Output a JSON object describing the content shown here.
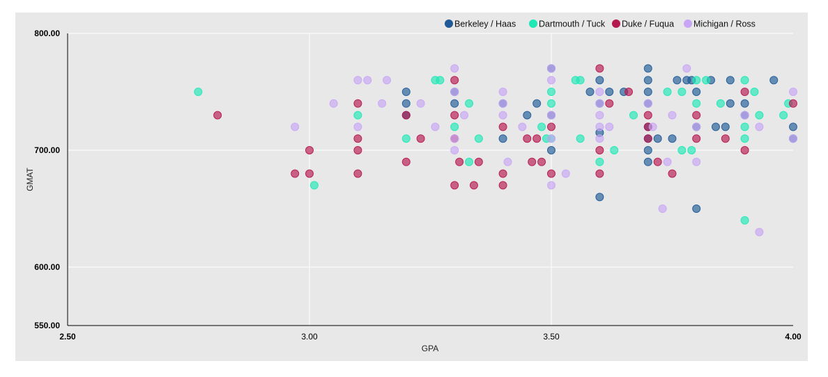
{
  "chart_data": {
    "type": "scatter",
    "title": "",
    "xlabel": "GPA",
    "ylabel": "GMAT",
    "xlim": [
      2.5,
      4.0
    ],
    "ylim": [
      550,
      800
    ],
    "x_ticks": [
      {
        "value": 2.5,
        "label": "2.50",
        "bold": true
      },
      {
        "value": 3.0,
        "label": "3.00",
        "bold": false
      },
      {
        "value": 3.5,
        "label": "3.50",
        "bold": false
      },
      {
        "value": 4.0,
        "label": "4.00",
        "bold": true
      }
    ],
    "y_ticks": [
      {
        "value": 550,
        "label": "550.00"
      },
      {
        "value": 600,
        "label": "600.00"
      },
      {
        "value": 700,
        "label": "700.00"
      },
      {
        "value": 800,
        "label": "800.00"
      }
    ],
    "grid": true,
    "legend_position": "top-right",
    "background_color": "#e8e8e8",
    "series": [
      {
        "name": "Berkeley / Haas",
        "color": "#1f5a96",
        "points": [
          [
            3.2,
            750
          ],
          [
            3.2,
            740
          ],
          [
            3.2,
            730
          ],
          [
            3.3,
            740
          ],
          [
            3.3,
            750
          ],
          [
            3.4,
            740
          ],
          [
            3.4,
            710
          ],
          [
            3.45,
            730
          ],
          [
            3.47,
            740
          ],
          [
            3.5,
            770
          ],
          [
            3.5,
            730
          ],
          [
            3.5,
            700
          ],
          [
            3.58,
            750
          ],
          [
            3.6,
            760
          ],
          [
            3.6,
            740
          ],
          [
            3.6,
            715
          ],
          [
            3.6,
            660
          ],
          [
            3.62,
            750
          ],
          [
            3.65,
            750
          ],
          [
            3.7,
            770
          ],
          [
            3.7,
            760
          ],
          [
            3.7,
            750
          ],
          [
            3.7,
            740
          ],
          [
            3.7,
            720
          ],
          [
            3.7,
            710
          ],
          [
            3.7,
            700
          ],
          [
            3.7,
            690
          ],
          [
            3.72,
            710
          ],
          [
            3.75,
            710
          ],
          [
            3.76,
            760
          ],
          [
            3.78,
            760
          ],
          [
            3.79,
            760
          ],
          [
            3.8,
            750
          ],
          [
            3.8,
            720
          ],
          [
            3.8,
            650
          ],
          [
            3.83,
            760
          ],
          [
            3.84,
            720
          ],
          [
            3.86,
            720
          ],
          [
            3.87,
            740
          ],
          [
            3.87,
            760
          ],
          [
            3.9,
            740
          ],
          [
            3.9,
            730
          ],
          [
            3.96,
            760
          ],
          [
            4.0,
            720
          ],
          [
            4.0,
            710
          ]
        ]
      },
      {
        "name": "Dartmouth / Tuck",
        "color": "#1ee8b6",
        "points": [
          [
            2.77,
            750
          ],
          [
            3.01,
            670
          ],
          [
            3.1,
            730
          ],
          [
            3.2,
            710
          ],
          [
            3.26,
            760
          ],
          [
            3.27,
            760
          ],
          [
            3.3,
            720
          ],
          [
            3.33,
            740
          ],
          [
            3.33,
            690
          ],
          [
            3.35,
            710
          ],
          [
            3.48,
            720
          ],
          [
            3.49,
            710
          ],
          [
            3.5,
            750
          ],
          [
            3.5,
            740
          ],
          [
            3.5,
            710
          ],
          [
            3.55,
            760
          ],
          [
            3.56,
            760
          ],
          [
            3.56,
            710
          ],
          [
            3.6,
            690
          ],
          [
            3.63,
            700
          ],
          [
            3.67,
            730
          ],
          [
            3.74,
            750
          ],
          [
            3.77,
            750
          ],
          [
            3.77,
            700
          ],
          [
            3.79,
            700
          ],
          [
            3.8,
            760
          ],
          [
            3.8,
            740
          ],
          [
            3.82,
            760
          ],
          [
            3.85,
            740
          ],
          [
            3.9,
            760
          ],
          [
            3.9,
            720
          ],
          [
            3.9,
            710
          ],
          [
            3.9,
            640
          ],
          [
            3.92,
            750
          ],
          [
            3.93,
            730
          ],
          [
            3.98,
            730
          ],
          [
            3.99,
            740
          ]
        ]
      },
      {
        "name": "Duke / Fuqua",
        "color": "#b5174f",
        "points": [
          [
            2.81,
            730
          ],
          [
            2.97,
            680
          ],
          [
            3.0,
            700
          ],
          [
            3.0,
            680
          ],
          [
            3.1,
            740
          ],
          [
            3.1,
            710
          ],
          [
            3.1,
            700
          ],
          [
            3.1,
            680
          ],
          [
            3.2,
            730
          ],
          [
            3.2,
            690
          ],
          [
            3.23,
            710
          ],
          [
            3.3,
            760
          ],
          [
            3.3,
            730
          ],
          [
            3.3,
            710
          ],
          [
            3.3,
            670
          ],
          [
            3.31,
            690
          ],
          [
            3.34,
            670
          ],
          [
            3.35,
            690
          ],
          [
            3.4,
            720
          ],
          [
            3.4,
            680
          ],
          [
            3.4,
            670
          ],
          [
            3.45,
            710
          ],
          [
            3.46,
            690
          ],
          [
            3.47,
            710
          ],
          [
            3.48,
            690
          ],
          [
            3.5,
            720
          ],
          [
            3.5,
            680
          ],
          [
            3.6,
            770
          ],
          [
            3.6,
            700
          ],
          [
            3.6,
            680
          ],
          [
            3.62,
            740
          ],
          [
            3.66,
            750
          ],
          [
            3.7,
            730
          ],
          [
            3.7,
            720
          ],
          [
            3.7,
            710
          ],
          [
            3.72,
            690
          ],
          [
            3.75,
            680
          ],
          [
            3.8,
            730
          ],
          [
            3.8,
            710
          ],
          [
            3.86,
            710
          ],
          [
            3.9,
            750
          ],
          [
            3.9,
            700
          ],
          [
            4.0,
            740
          ]
        ]
      },
      {
        "name": "Michigan / Ross",
        "color": "#c8a6f5",
        "points": [
          [
            2.97,
            720
          ],
          [
            3.05,
            740
          ],
          [
            3.1,
            760
          ],
          [
            3.1,
            720
          ],
          [
            3.12,
            760
          ],
          [
            3.15,
            740
          ],
          [
            3.16,
            760
          ],
          [
            3.23,
            740
          ],
          [
            3.26,
            720
          ],
          [
            3.3,
            770
          ],
          [
            3.3,
            750
          ],
          [
            3.3,
            710
          ],
          [
            3.3,
            700
          ],
          [
            3.32,
            730
          ],
          [
            3.4,
            750
          ],
          [
            3.4,
            740
          ],
          [
            3.4,
            730
          ],
          [
            3.41,
            690
          ],
          [
            3.44,
            720
          ],
          [
            3.5,
            770
          ],
          [
            3.5,
            760
          ],
          [
            3.5,
            730
          ],
          [
            3.5,
            710
          ],
          [
            3.5,
            670
          ],
          [
            3.53,
            680
          ],
          [
            3.6,
            750
          ],
          [
            3.6,
            740
          ],
          [
            3.6,
            730
          ],
          [
            3.6,
            720
          ],
          [
            3.6,
            710
          ],
          [
            3.62,
            720
          ],
          [
            3.7,
            740
          ],
          [
            3.71,
            720
          ],
          [
            3.73,
            650
          ],
          [
            3.74,
            690
          ],
          [
            3.75,
            730
          ],
          [
            3.78,
            770
          ],
          [
            3.8,
            720
          ],
          [
            3.8,
            690
          ],
          [
            3.9,
            730
          ],
          [
            3.93,
            720
          ],
          [
            3.93,
            630
          ],
          [
            4.0,
            750
          ],
          [
            4.0,
            710
          ]
        ]
      }
    ]
  }
}
